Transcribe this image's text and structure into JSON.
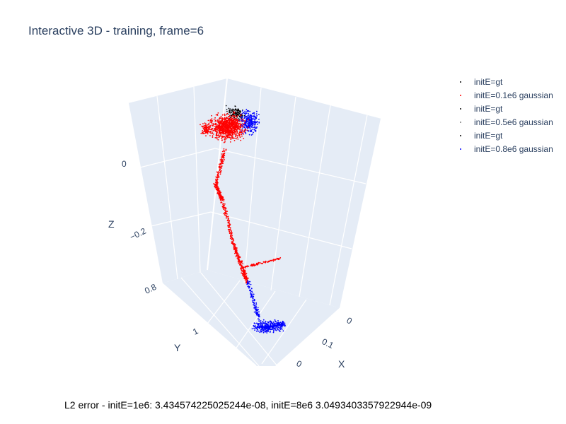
{
  "title": "Interactive 3D - training, frame=6",
  "caption": "L2 error - initE=1e6: 3.434574225025244e-08, initE=8e6 3.0493403357922944e-09",
  "colors": {
    "background": "#ffffff",
    "scene_pane": "#e5ecf6",
    "grid": "#ffffff",
    "text": "#2a3f5f"
  },
  "chart_data": {
    "type": "scatter3d",
    "title": "Interactive 3D - training, frame=6",
    "axes": {
      "x": {
        "title": "X",
        "ticks": [
          "0",
          "0.1",
          "0"
        ]
      },
      "y": {
        "title": "Y",
        "ticks": [
          "0.8",
          "1"
        ]
      },
      "z": {
        "title": "Z",
        "ticks": [
          "0",
          "−0.2"
        ]
      }
    },
    "legend_position": "top-right",
    "grid": true,
    "series": [
      {
        "name": "initE=gt",
        "color": "#000000"
      },
      {
        "name": "initE=0.1e6 gaussian",
        "color": "#ff0000"
      },
      {
        "name": "initE=gt",
        "color": "#000000"
      },
      {
        "name": "initE=0.5e6 gaussian",
        "color": "#808080"
      },
      {
        "name": "initE=gt",
        "color": "#000000"
      },
      {
        "name": "initE=0.8e6 gaussian",
        "color": "#0000ff"
      }
    ]
  }
}
